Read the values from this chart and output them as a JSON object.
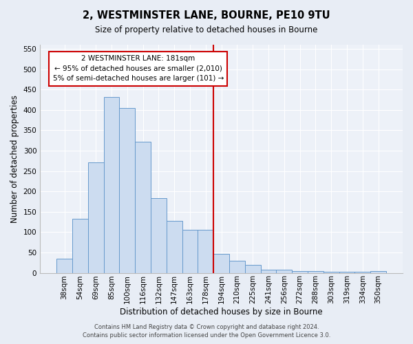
{
  "title": "2, WESTMINSTER LANE, BOURNE, PE10 9TU",
  "subtitle": "Size of property relative to detached houses in Bourne",
  "xlabel": "Distribution of detached houses by size in Bourne",
  "ylabel": "Number of detached properties",
  "bar_labels": [
    "38sqm",
    "54sqm",
    "69sqm",
    "85sqm",
    "100sqm",
    "116sqm",
    "132sqm",
    "147sqm",
    "163sqm",
    "178sqm",
    "194sqm",
    "210sqm",
    "225sqm",
    "241sqm",
    "256sqm",
    "272sqm",
    "288sqm",
    "303sqm",
    "319sqm",
    "334sqm",
    "350sqm"
  ],
  "bar_heights": [
    35,
    133,
    272,
    432,
    405,
    322,
    183,
    127,
    105,
    105,
    46,
    30,
    20,
    8,
    8,
    5,
    5,
    3,
    3,
    3,
    4
  ],
  "bar_color": "#ccdcf0",
  "bar_edge_color": "#6699cc",
  "vline_color": "#cc0000",
  "annotation_title": "2 WESTMINSTER LANE: 181sqm",
  "annotation_line1": "← 95% of detached houses are smaller (2,010)",
  "annotation_line2": "5% of semi-detached houses are larger (101) →",
  "annotation_box_color": "#cc0000",
  "ylim": [
    0,
    560
  ],
  "yticks": [
    0,
    50,
    100,
    150,
    200,
    250,
    300,
    350,
    400,
    450,
    500,
    550
  ],
  "footer_line1": "Contains HM Land Registry data © Crown copyright and database right 2024.",
  "footer_line2": "Contains public sector information licensed under the Open Government Licence 3.0.",
  "background_color": "#e8edf5",
  "plot_bg_color": "#edf1f8",
  "grid_color": "#ffffff",
  "title_fontsize": 10.5,
  "subtitle_fontsize": 8.5,
  "xlabel_fontsize": 8.5,
  "ylabel_fontsize": 8.5,
  "tick_fontsize": 7.5,
  "annot_fontsize": 7.5,
  "footer_fontsize": 6.0
}
